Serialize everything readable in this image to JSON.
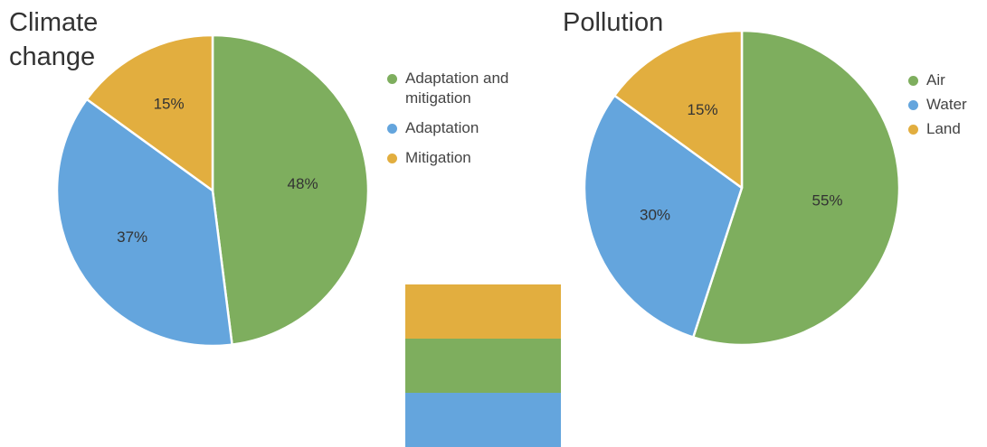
{
  "chart_data": [
    {
      "type": "pie",
      "title": "Climate change",
      "slices": [
        {
          "label": "Adaptation and mitigation",
          "value": 48,
          "display": "48%",
          "color": "#7eae5e"
        },
        {
          "label": "Adaptation",
          "value": 37,
          "display": "37%",
          "color": "#64a5dd"
        },
        {
          "label": "Mitigation",
          "value": 15,
          "display": "15%",
          "color": "#e2ae3f"
        }
      ],
      "legend_position": "right"
    },
    {
      "type": "pie",
      "title": "Pollution",
      "slices": [
        {
          "label": "Air",
          "value": 55,
          "display": "55%",
          "color": "#7eae5e"
        },
        {
          "label": "Water",
          "value": 30,
          "display": "30%",
          "color": "#64a5dd"
        },
        {
          "label": "Land",
          "value": 15,
          "display": "15%",
          "color": "#e2ae3f"
        }
      ],
      "legend_position": "right"
    }
  ],
  "swatch": {
    "bands": [
      {
        "color": "#e2ae3f"
      },
      {
        "color": "#7eae5e"
      },
      {
        "color": "#64a5dd"
      }
    ]
  }
}
